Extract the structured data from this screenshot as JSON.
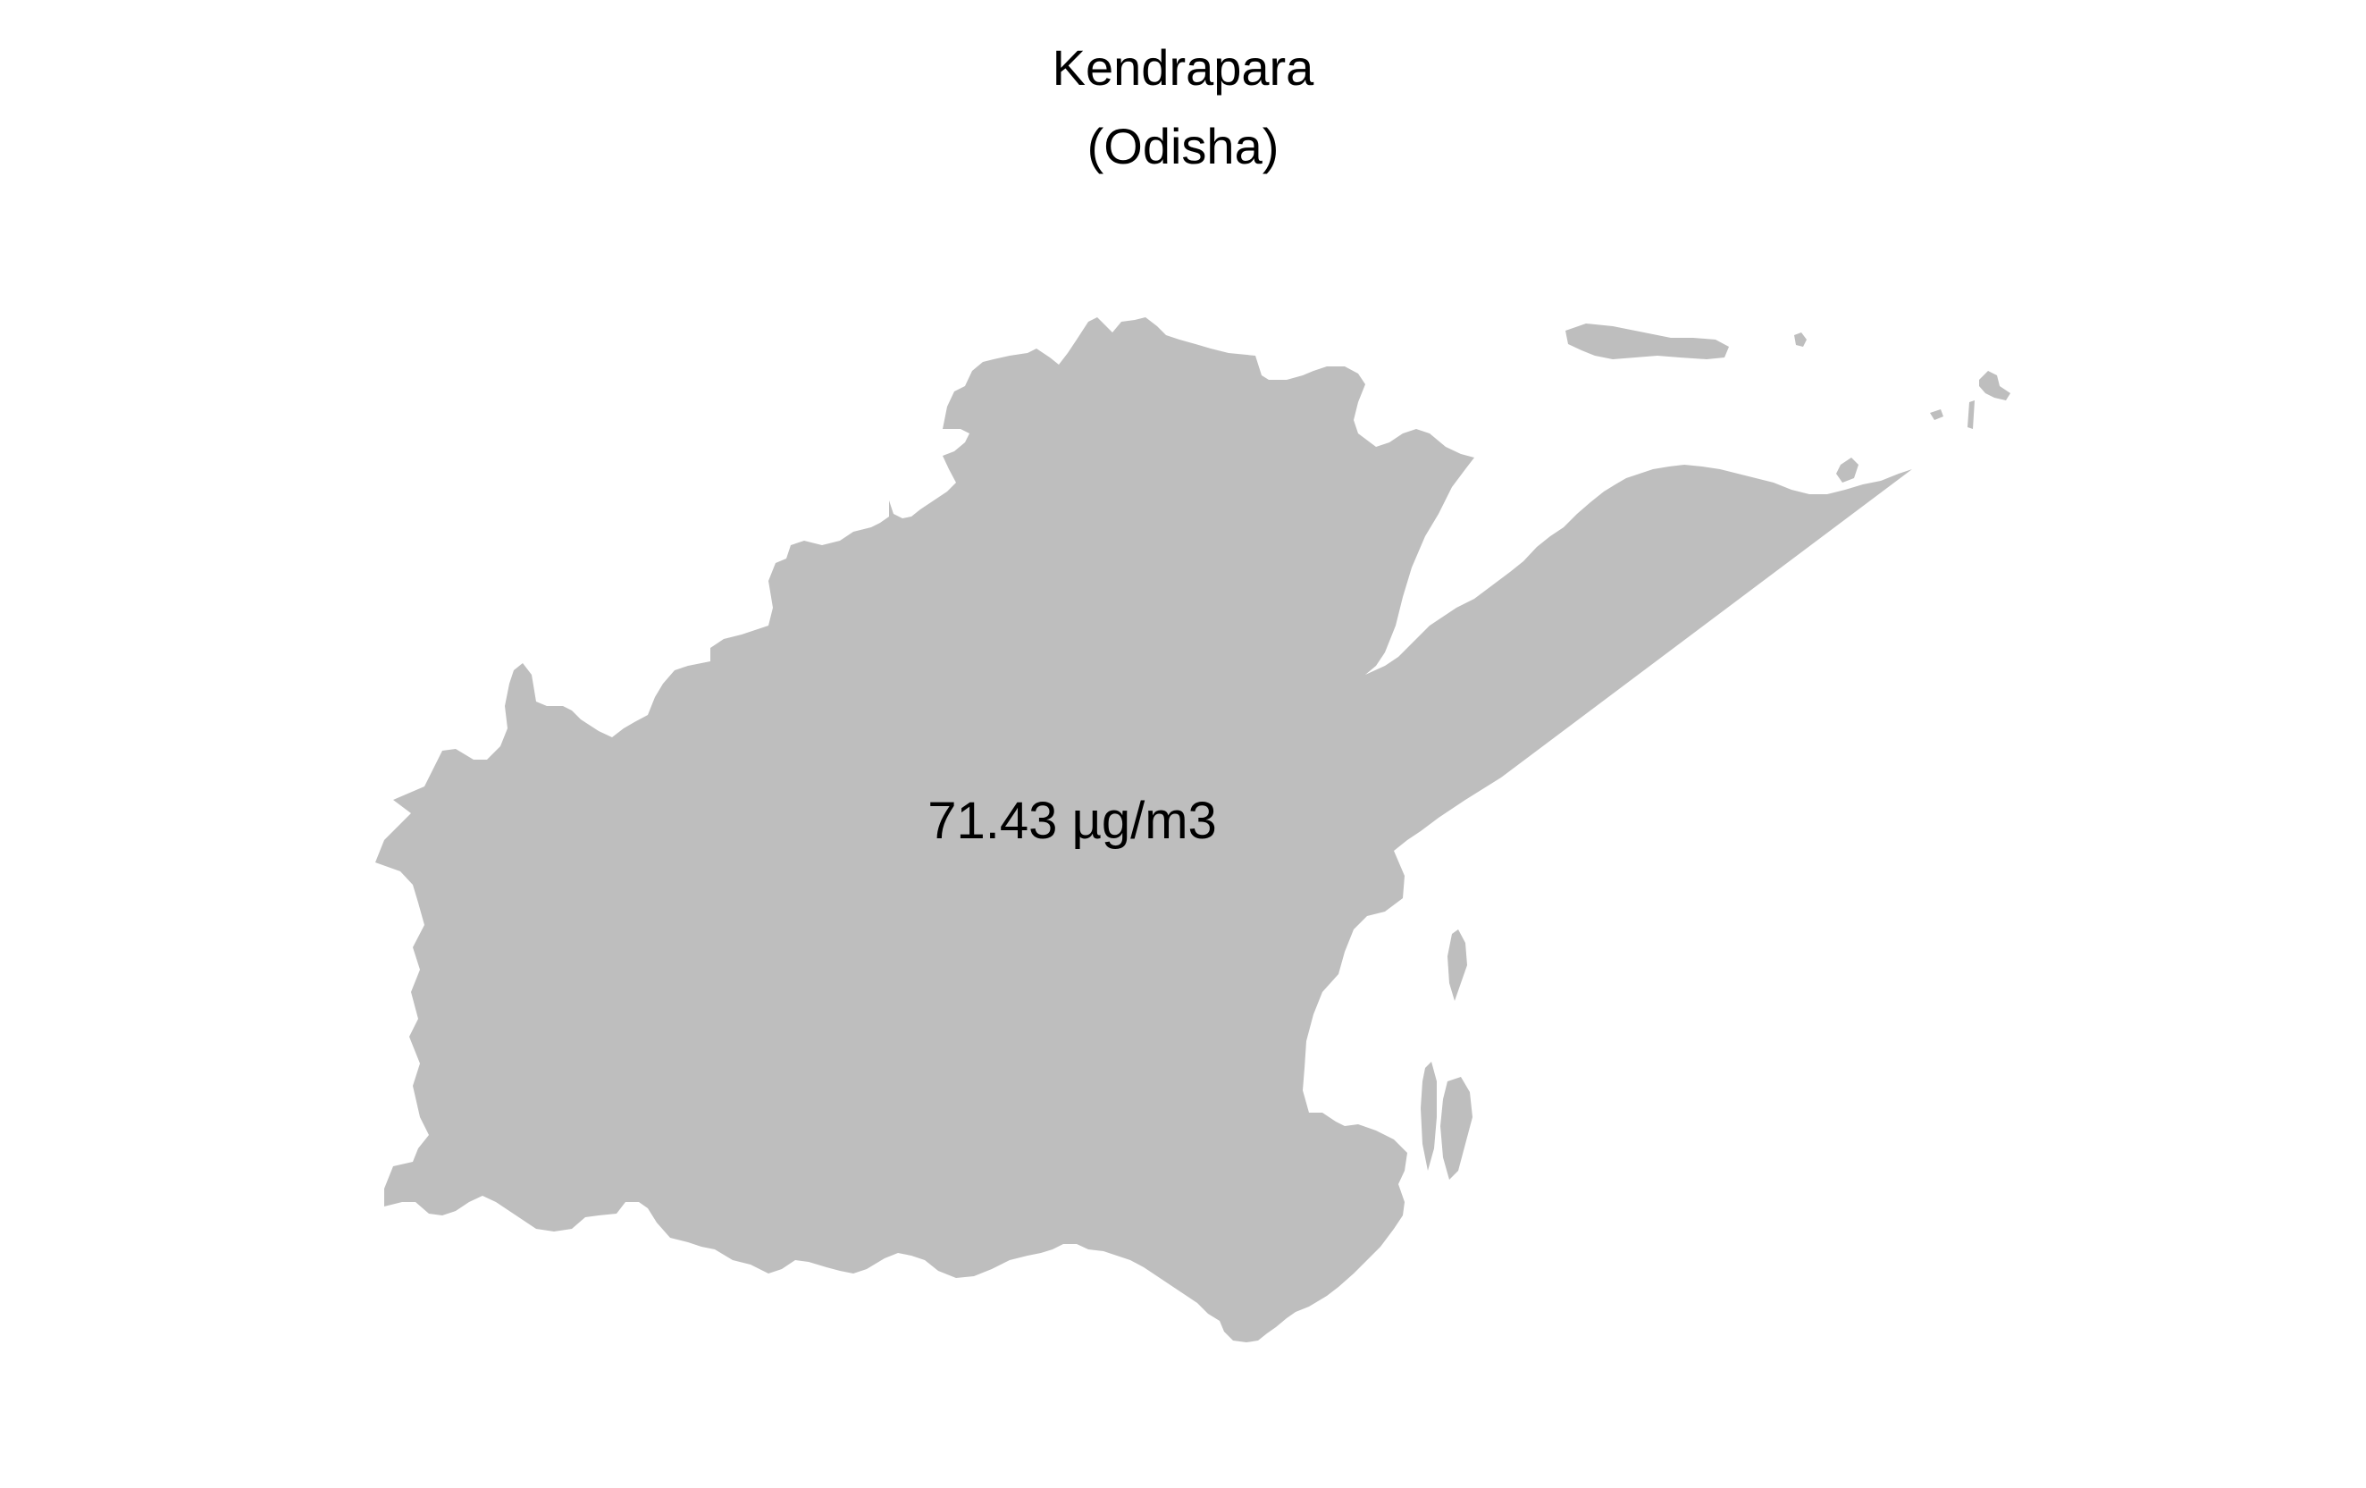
{
  "map": {
    "title": "Kendrapara",
    "subtitle": "(Odisha)",
    "value_label": "71.43 µg/m3",
    "fill_color": "#bebebe",
    "background_color": "#ffffff"
  }
}
